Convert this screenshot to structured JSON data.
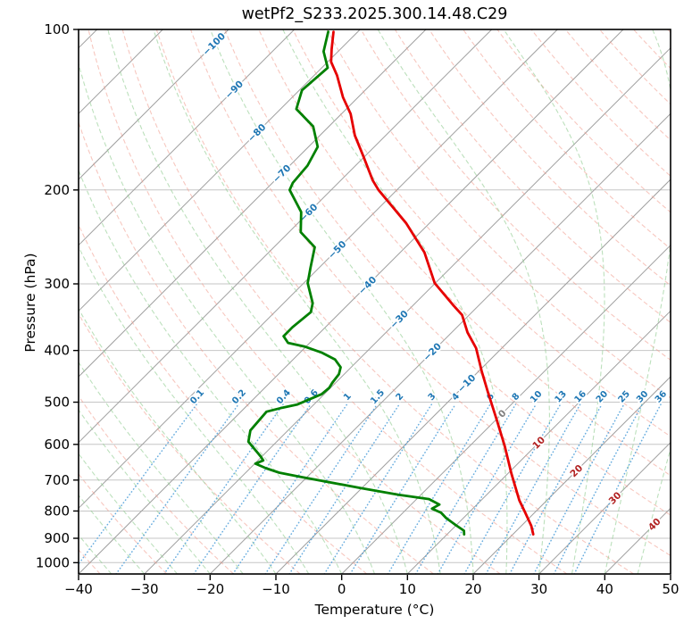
{
  "title": "wetPf2_S233.2025.300.14.48.C29",
  "chart_data": {
    "type": "skewt-log-p",
    "title": "wetPf2_S233.2025.300.14.48.C29",
    "xlabel": "Temperature (°C)",
    "ylabel": "Pressure (hPa)",
    "xlim": [
      -40,
      50
    ],
    "ylim": [
      1050,
      100
    ],
    "skew_deg": 45,
    "x_ticks": [
      -40,
      -30,
      -20,
      -10,
      0,
      10,
      20,
      30,
      40,
      50
    ],
    "y_ticks": [
      100,
      200,
      300,
      400,
      500,
      600,
      700,
      800,
      900,
      1000
    ],
    "isotherms": {
      "min": -120,
      "max": 50,
      "step": 10
    },
    "dry_adiabats": {
      "min": -40,
      "max": 200,
      "step": 10
    },
    "moist_adiabats": {
      "min": -40,
      "max": 50,
      "step": 5
    },
    "mixing_ratios_g_kg": [
      0.1,
      0.2,
      0.4,
      0.6,
      1,
      1.5,
      2,
      3,
      4,
      6,
      8,
      10,
      13,
      16,
      20,
      25,
      30,
      36
    ],
    "isotherm_labels": [
      {
        "value": -100,
        "color": "#1f77b4"
      },
      {
        "value": -90,
        "color": "#1f77b4"
      },
      {
        "value": -80,
        "color": "#1f77b4"
      },
      {
        "value": -70,
        "color": "#1f77b4"
      },
      {
        "value": -60,
        "color": "#1f77b4"
      },
      {
        "value": -50,
        "color": "#1f77b4"
      },
      {
        "value": -40,
        "color": "#1f77b4"
      },
      {
        "value": -30,
        "color": "#1f77b4"
      },
      {
        "value": -20,
        "color": "#1f77b4"
      },
      {
        "value": -10,
        "color": "#1f77b4"
      },
      {
        "value": 0,
        "color": "#7f7f7f"
      },
      {
        "value": 10,
        "color": "#b22222"
      },
      {
        "value": 20,
        "color": "#b22222"
      },
      {
        "value": 30,
        "color": "#b22222"
      },
      {
        "value": 40,
        "color": "#b22222"
      }
    ],
    "temperature_profile": [
      [
        101,
        -83.7
      ],
      [
        109,
        -81.3
      ],
      [
        115,
        -79.5
      ],
      [
        122,
        -76.5
      ],
      [
        134,
        -72.3
      ],
      [
        144,
        -68.6
      ],
      [
        158,
        -64.7
      ],
      [
        173,
        -60.2
      ],
      [
        192,
        -55.1
      ],
      [
        200,
        -52.8
      ],
      [
        231,
        -43.5
      ],
      [
        262,
        -36.3
      ],
      [
        299,
        -30.1
      ],
      [
        330,
        -23.7
      ],
      [
        343,
        -21.1
      ],
      [
        370,
        -17.6
      ],
      [
        396,
        -13.9
      ],
      [
        437,
        -9.6
      ],
      [
        478,
        -5.5
      ],
      [
        537,
        -0.1
      ],
      [
        604,
        5.3
      ],
      [
        680,
        10.5
      ],
      [
        764,
        15.8
      ],
      [
        803,
        18.4
      ],
      [
        853,
        21.5
      ],
      [
        885,
        23.1
      ]
    ],
    "dewpoint_profile": [
      [
        101,
        -84.5
      ],
      [
        110,
        -82.2
      ],
      [
        118,
        -79.1
      ],
      [
        130,
        -79.6
      ],
      [
        141,
        -77.6
      ],
      [
        152,
        -72.4
      ],
      [
        166,
        -68.6
      ],
      [
        180,
        -67.3
      ],
      [
        194,
        -66.9
      ],
      [
        200,
        -66.3
      ],
      [
        220,
        -61.2
      ],
      [
        240,
        -58.2
      ],
      [
        256,
        -53.8
      ],
      [
        280,
        -51.3
      ],
      [
        299,
        -49.4
      ],
      [
        326,
        -45.6
      ],
      [
        339,
        -44.5
      ],
      [
        362,
        -45.0
      ],
      [
        376,
        -45.0
      ],
      [
        387,
        -43.3
      ],
      [
        393,
        -40.3
      ],
      [
        404,
        -36.6
      ],
      [
        416,
        -33.6
      ],
      [
        430,
        -31.6
      ],
      [
        443,
        -30.8
      ],
      [
        460,
        -30.5
      ],
      [
        470,
        -30.2
      ],
      [
        483,
        -30.4
      ],
      [
        505,
        -32.5
      ],
      [
        512,
        -34.3
      ],
      [
        521,
        -36.1
      ],
      [
        565,
        -35.7
      ],
      [
        593,
        -34.3
      ],
      [
        632,
        -30.2
      ],
      [
        643,
        -29.2
      ],
      [
        652,
        -29.9
      ],
      [
        665,
        -27.6
      ],
      [
        678,
        -24.9
      ],
      [
        690,
        -21.1
      ],
      [
        724,
        -10.3
      ],
      [
        746,
        -3.4
      ],
      [
        760,
        1.9
      ],
      [
        778,
        4.3
      ],
      [
        792,
        3.8
      ],
      [
        806,
        5.8
      ],
      [
        825,
        7.4
      ],
      [
        851,
        10.0
      ],
      [
        871,
        12.0
      ],
      [
        885,
        12.6
      ]
    ],
    "colors": {
      "temperature_line": "#e60000",
      "dewpoint_line": "#008000",
      "isotherm": "#9f9f9f",
      "pressure_grid": "#c6c6c6",
      "dry_adiabat": "#f0998a",
      "moist_adiabat": "#8fcc8f",
      "mixing_ratio": "#4e9fd9",
      "mixing_ratio_label": "#1f77b4",
      "axis": "#000000"
    }
  }
}
